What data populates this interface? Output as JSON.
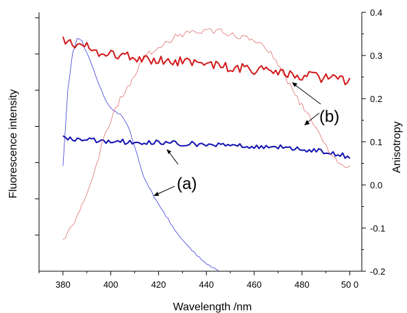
{
  "chart_data": {
    "type": "line",
    "xlabel": "Wavelength /nm",
    "ylabel_left": "Fluorescence intensity",
    "ylabel_right": "Anisotropy",
    "xlim": [
      370,
      505
    ],
    "x_ticks": [
      380,
      400,
      420,
      440,
      460,
      480,
      500
    ],
    "x_tick_labels": [
      "380",
      "400",
      "420",
      "440",
      "460",
      "480",
      "50 0"
    ],
    "y_right_lim": [
      -0.2,
      0.4
    ],
    "y_right_ticks": [
      "-0.2",
      "-0.1",
      "0.0",
      "0.1",
      "0.2",
      "0.3",
      "0.4"
    ],
    "y_left_lim": [
      0,
      1
    ],
    "y_left_tick_count": 7,
    "grid": false,
    "annotations": [
      "(a)",
      "(b)"
    ],
    "series": [
      {
        "axis": "left",
        "color": "#3a3ad8",
        "style": "thin",
        "group": "(a)",
        "x": [
          380,
          382,
          384,
          386,
          388,
          390,
          392,
          394,
          396,
          398,
          400,
          402,
          404,
          406,
          408,
          410,
          414,
          418,
          422,
          426,
          430,
          434,
          438,
          442,
          446
        ],
        "y": [
          0.41,
          0.7,
          0.84,
          0.9,
          0.89,
          0.84,
          0.8,
          0.75,
          0.7,
          0.66,
          0.63,
          0.62,
          0.605,
          0.58,
          0.54,
          0.48,
          0.36,
          0.29,
          0.23,
          0.17,
          0.12,
          0.08,
          0.045,
          0.015,
          -0.005
        ]
      },
      {
        "axis": "right",
        "color": "#1010b0",
        "style": "thick",
        "group": "(a)",
        "x": [
          380,
          385,
          390,
          395,
          400,
          405,
          410,
          415,
          420,
          425,
          430,
          435,
          440,
          445,
          450,
          455,
          460,
          465,
          470,
          475,
          480,
          485,
          490,
          495,
          500
        ],
        "y": [
          0.108,
          0.106,
          0.105,
          0.103,
          0.101,
          0.1,
          0.1,
          0.098,
          0.098,
          0.097,
          0.096,
          0.095,
          0.094,
          0.094,
          0.093,
          0.092,
          0.09,
          0.089,
          0.087,
          0.086,
          0.083,
          0.08,
          0.078,
          0.072,
          0.062
        ]
      },
      {
        "axis": "left",
        "color": "#e07070",
        "style": "thin",
        "group": "(b)",
        "x": [
          380,
          384,
          388,
          392,
          396,
          400,
          404,
          408,
          412,
          416,
          420,
          424,
          428,
          432,
          436,
          440,
          444,
          448,
          452,
          456,
          460,
          464,
          468,
          472,
          476,
          480,
          484,
          488,
          492,
          496,
          500
        ],
        "y": [
          0.12,
          0.18,
          0.25,
          0.34,
          0.48,
          0.58,
          0.67,
          0.72,
          0.79,
          0.84,
          0.87,
          0.89,
          0.91,
          0.92,
          0.92,
          0.925,
          0.93,
          0.92,
          0.915,
          0.9,
          0.89,
          0.87,
          0.83,
          0.77,
          0.7,
          0.64,
          0.58,
          0.52,
          0.46,
          0.42,
          0.4
        ]
      },
      {
        "axis": "right",
        "color": "#d01818",
        "style": "thick",
        "group": "(b)",
        "x": [
          380,
          385,
          390,
          395,
          400,
          405,
          410,
          415,
          420,
          425,
          430,
          435,
          440,
          445,
          450,
          455,
          460,
          465,
          470,
          475,
          480,
          485,
          490,
          495,
          500
        ],
        "y": [
          0.335,
          0.32,
          0.33,
          0.31,
          0.305,
          0.3,
          0.295,
          0.29,
          0.29,
          0.288,
          0.285,
          0.28,
          0.278,
          0.275,
          0.272,
          0.27,
          0.268,
          0.265,
          0.262,
          0.258,
          0.255,
          0.252,
          0.248,
          0.245,
          0.242
        ]
      }
    ]
  }
}
